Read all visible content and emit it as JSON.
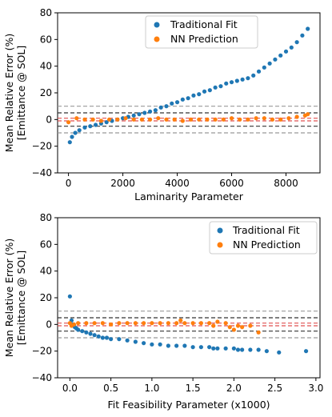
{
  "chart_data": [
    {
      "type": "scatter",
      "title": "",
      "xlabel": "Laminarity Parameter",
      "ylabel": "Mean Relative Error (%)\n[Emittance @ SOL]",
      "ylabel_lines": [
        "Mean Relative Error (%)",
        "[Emittance @ SOL]"
      ],
      "xlim": [
        -400,
        9250
      ],
      "ylim": [
        -40,
        80
      ],
      "xticks": [
        0,
        2000,
        4000,
        6000,
        8000
      ],
      "xtick_labels": [
        "0",
        "2000",
        "4000",
        "6000",
        "8000"
      ],
      "yticks": [
        -40,
        -20,
        0,
        20,
        40,
        60,
        80
      ],
      "ytick_labels": [
        "−40",
        "−20",
        "0",
        "20",
        "40",
        "60",
        "80"
      ],
      "grid": false,
      "legend_position": "top-center",
      "reference_lines": [
        {
          "y": 10,
          "color": "#999999",
          "style": "dashed"
        },
        {
          "y": -10,
          "color": "#999999",
          "style": "dashed"
        },
        {
          "y": 5,
          "color": "#333333",
          "style": "dashed"
        },
        {
          "y": -5,
          "color": "#333333",
          "style": "dashed"
        },
        {
          "y": 1,
          "color": "#e05050",
          "style": "dashed"
        },
        {
          "y": -1,
          "color": "#e05050",
          "style": "dashed"
        }
      ],
      "series": [
        {
          "name": "Traditional Fit",
          "color": "#1f77b4",
          "x": [
            50,
            130,
            250,
            400,
            600,
            800,
            1000,
            1200,
            1400,
            1600,
            1800,
            2000,
            2200,
            2400,
            2600,
            2800,
            3000,
            3200,
            3400,
            3600,
            3800,
            4000,
            4200,
            4400,
            4600,
            4800,
            5000,
            5200,
            5400,
            5600,
            5800,
            6000,
            6200,
            6400,
            6600,
            6800,
            7000,
            7200,
            7400,
            7600,
            7800,
            8000,
            8200,
            8400,
            8600,
            8800
          ],
          "y": [
            -17,
            -13,
            -10,
            -8,
            -6,
            -5,
            -4,
            -3,
            -2,
            -1,
            0,
            1,
            2,
            3,
            4,
            5,
            6,
            7,
            9,
            10,
            12,
            13,
            15,
            16,
            18,
            19,
            21,
            22,
            24,
            25,
            27,
            28,
            29,
            30,
            31,
            33,
            36,
            39,
            42,
            45,
            48,
            51,
            54,
            58,
            63,
            68
          ]
        },
        {
          "name": "NN Prediction",
          "color": "#ff7f0e",
          "x": [
            0,
            300,
            600,
            900,
            1200,
            1500,
            1800,
            2100,
            2400,
            2700,
            3000,
            3300,
            3600,
            3900,
            4200,
            4500,
            4800,
            5100,
            5400,
            5700,
            6000,
            6300,
            6600,
            6900,
            7200,
            7500,
            7800,
            8100,
            8400,
            8700,
            8800
          ],
          "y": [
            -2,
            1,
            0,
            0,
            -1,
            0,
            0,
            1,
            0,
            0,
            0,
            1,
            0,
            0,
            -1,
            0,
            0,
            0,
            0,
            0,
            1,
            0,
            0,
            1,
            1,
            0,
            0,
            1,
            2,
            3,
            4
          ]
        }
      ]
    },
    {
      "type": "scatter",
      "title": "",
      "xlabel": "Fit Feasibility Parameter (x1000)",
      "ylabel": "Mean Relative Error (%)\n[Emittance @ SOL]",
      "ylabel_lines": [
        "Mean Relative Error (%)",
        "[Emittance @ SOL]"
      ],
      "xlim": [
        -0.15,
        3.05
      ],
      "ylim": [
        -40,
        80
      ],
      "xticks": [
        0.0,
        0.5,
        1.0,
        1.5,
        2.0,
        2.5,
        3.0
      ],
      "xtick_labels": [
        "0.0",
        "0.5",
        "1.0",
        "1.5",
        "2.0",
        "2.5",
        "3.0"
      ],
      "yticks": [
        -40,
        -20,
        0,
        20,
        40,
        60,
        80
      ],
      "ytick_labels": [
        "−40",
        "−20",
        "0",
        "20",
        "40",
        "60",
        "80"
      ],
      "grid": false,
      "legend_position": "top-right",
      "reference_lines": [
        {
          "y": 10,
          "color": "#999999",
          "style": "dashed"
        },
        {
          "y": -10,
          "color": "#999999",
          "style": "dashed"
        },
        {
          "y": 5,
          "color": "#333333",
          "style": "dashed"
        },
        {
          "y": -5,
          "color": "#333333",
          "style": "dashed"
        },
        {
          "y": 1,
          "color": "#e05050",
          "style": "dashed"
        },
        {
          "y": -1,
          "color": "#e05050",
          "style": "dashed"
        }
      ],
      "series": [
        {
          "name": "Traditional Fit",
          "color": "#1f77b4",
          "x": [
            0.0,
            0.02,
            0.04,
            0.06,
            0.08,
            0.1,
            0.15,
            0.2,
            0.25,
            0.3,
            0.35,
            0.4,
            0.45,
            0.5,
            0.6,
            0.7,
            0.8,
            0.9,
            1.0,
            1.1,
            1.2,
            1.3,
            1.4,
            1.5,
            1.6,
            1.7,
            1.75,
            1.8,
            1.9,
            2.0,
            2.05,
            2.1,
            2.2,
            2.3,
            2.4,
            2.55,
            2.88
          ],
          "y": [
            21,
            3,
            0,
            -2,
            -3,
            -4,
            -5,
            -6,
            -7,
            -8,
            -9,
            -10,
            -10,
            -11,
            -11,
            -12,
            -13,
            -14,
            -15,
            -15,
            -16,
            -16,
            -16,
            -17,
            -17,
            -17,
            -18,
            -18,
            -18,
            -18,
            -19,
            -19,
            -19,
            -19,
            -20,
            -21,
            -20
          ]
        },
        {
          "name": "NN Prediction",
          "color": "#ff7f0e",
          "x": [
            0.0,
            0.02,
            0.05,
            0.1,
            0.2,
            0.3,
            0.4,
            0.5,
            0.6,
            0.7,
            0.8,
            0.9,
            1.0,
            1.1,
            1.2,
            1.3,
            1.35,
            1.4,
            1.5,
            1.6,
            1.7,
            1.75,
            1.8,
            1.9,
            1.95,
            2.0,
            2.05,
            2.1,
            2.2,
            2.3
          ],
          "y": [
            1,
            -1,
            0,
            1,
            1,
            1,
            1,
            0,
            1,
            1,
            1,
            1,
            1,
            1,
            1,
            1,
            3,
            1,
            1,
            1,
            1,
            -1,
            2,
            1,
            -2,
            -4,
            -1,
            -2,
            -1,
            -6
          ]
        }
      ]
    }
  ]
}
